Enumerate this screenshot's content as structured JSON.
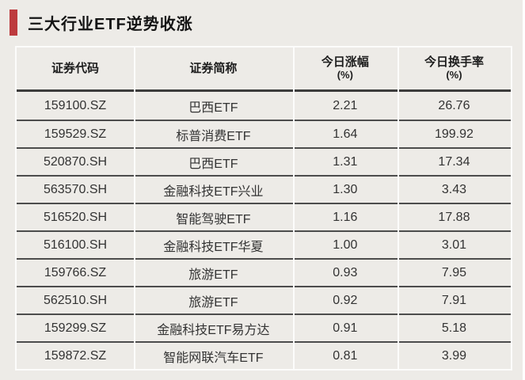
{
  "page": {
    "title": "三大行业ETF逆势收涨",
    "accent_color": "#bd3b3e",
    "background_color": "#edebe7"
  },
  "chart_data": {
    "type": "table",
    "title": "三大行业ETF逆势收涨",
    "columns": [
      {
        "key": "code",
        "label": "证券代码",
        "unit": ""
      },
      {
        "key": "name",
        "label": "证券简称",
        "unit": ""
      },
      {
        "key": "change",
        "label": "今日涨幅",
        "unit": "(%)"
      },
      {
        "key": "turnover",
        "label": "今日换手率",
        "unit": "(%)"
      }
    ],
    "rows": [
      {
        "code": "159100.SZ",
        "name": "巴西ETF",
        "change": "2.21",
        "turnover": "26.76"
      },
      {
        "code": "159529.SZ",
        "name": "标普消费ETF",
        "change": "1.64",
        "turnover": "199.92"
      },
      {
        "code": "520870.SH",
        "name": "巴西ETF",
        "change": "1.31",
        "turnover": "17.34"
      },
      {
        "code": "563570.SH",
        "name": "金融科技ETF兴业",
        "change": "1.30",
        "turnover": "3.43"
      },
      {
        "code": "516520.SH",
        "name": "智能驾驶ETF",
        "change": "1.16",
        "turnover": "17.88"
      },
      {
        "code": "516100.SH",
        "name": "金融科技ETF华夏",
        "change": "1.00",
        "turnover": "3.01"
      },
      {
        "code": "159766.SZ",
        "name": "旅游ETF",
        "change": "0.93",
        "turnover": "7.95"
      },
      {
        "code": "562510.SH",
        "name": "旅游ETF",
        "change": "0.92",
        "turnover": "7.91"
      },
      {
        "code": "159299.SZ",
        "name": "金融科技ETF易方达",
        "change": "0.91",
        "turnover": "5.18"
      },
      {
        "code": "159872.SZ",
        "name": "智能网联汽车ETF",
        "change": "0.81",
        "turnover": "3.99"
      }
    ]
  }
}
